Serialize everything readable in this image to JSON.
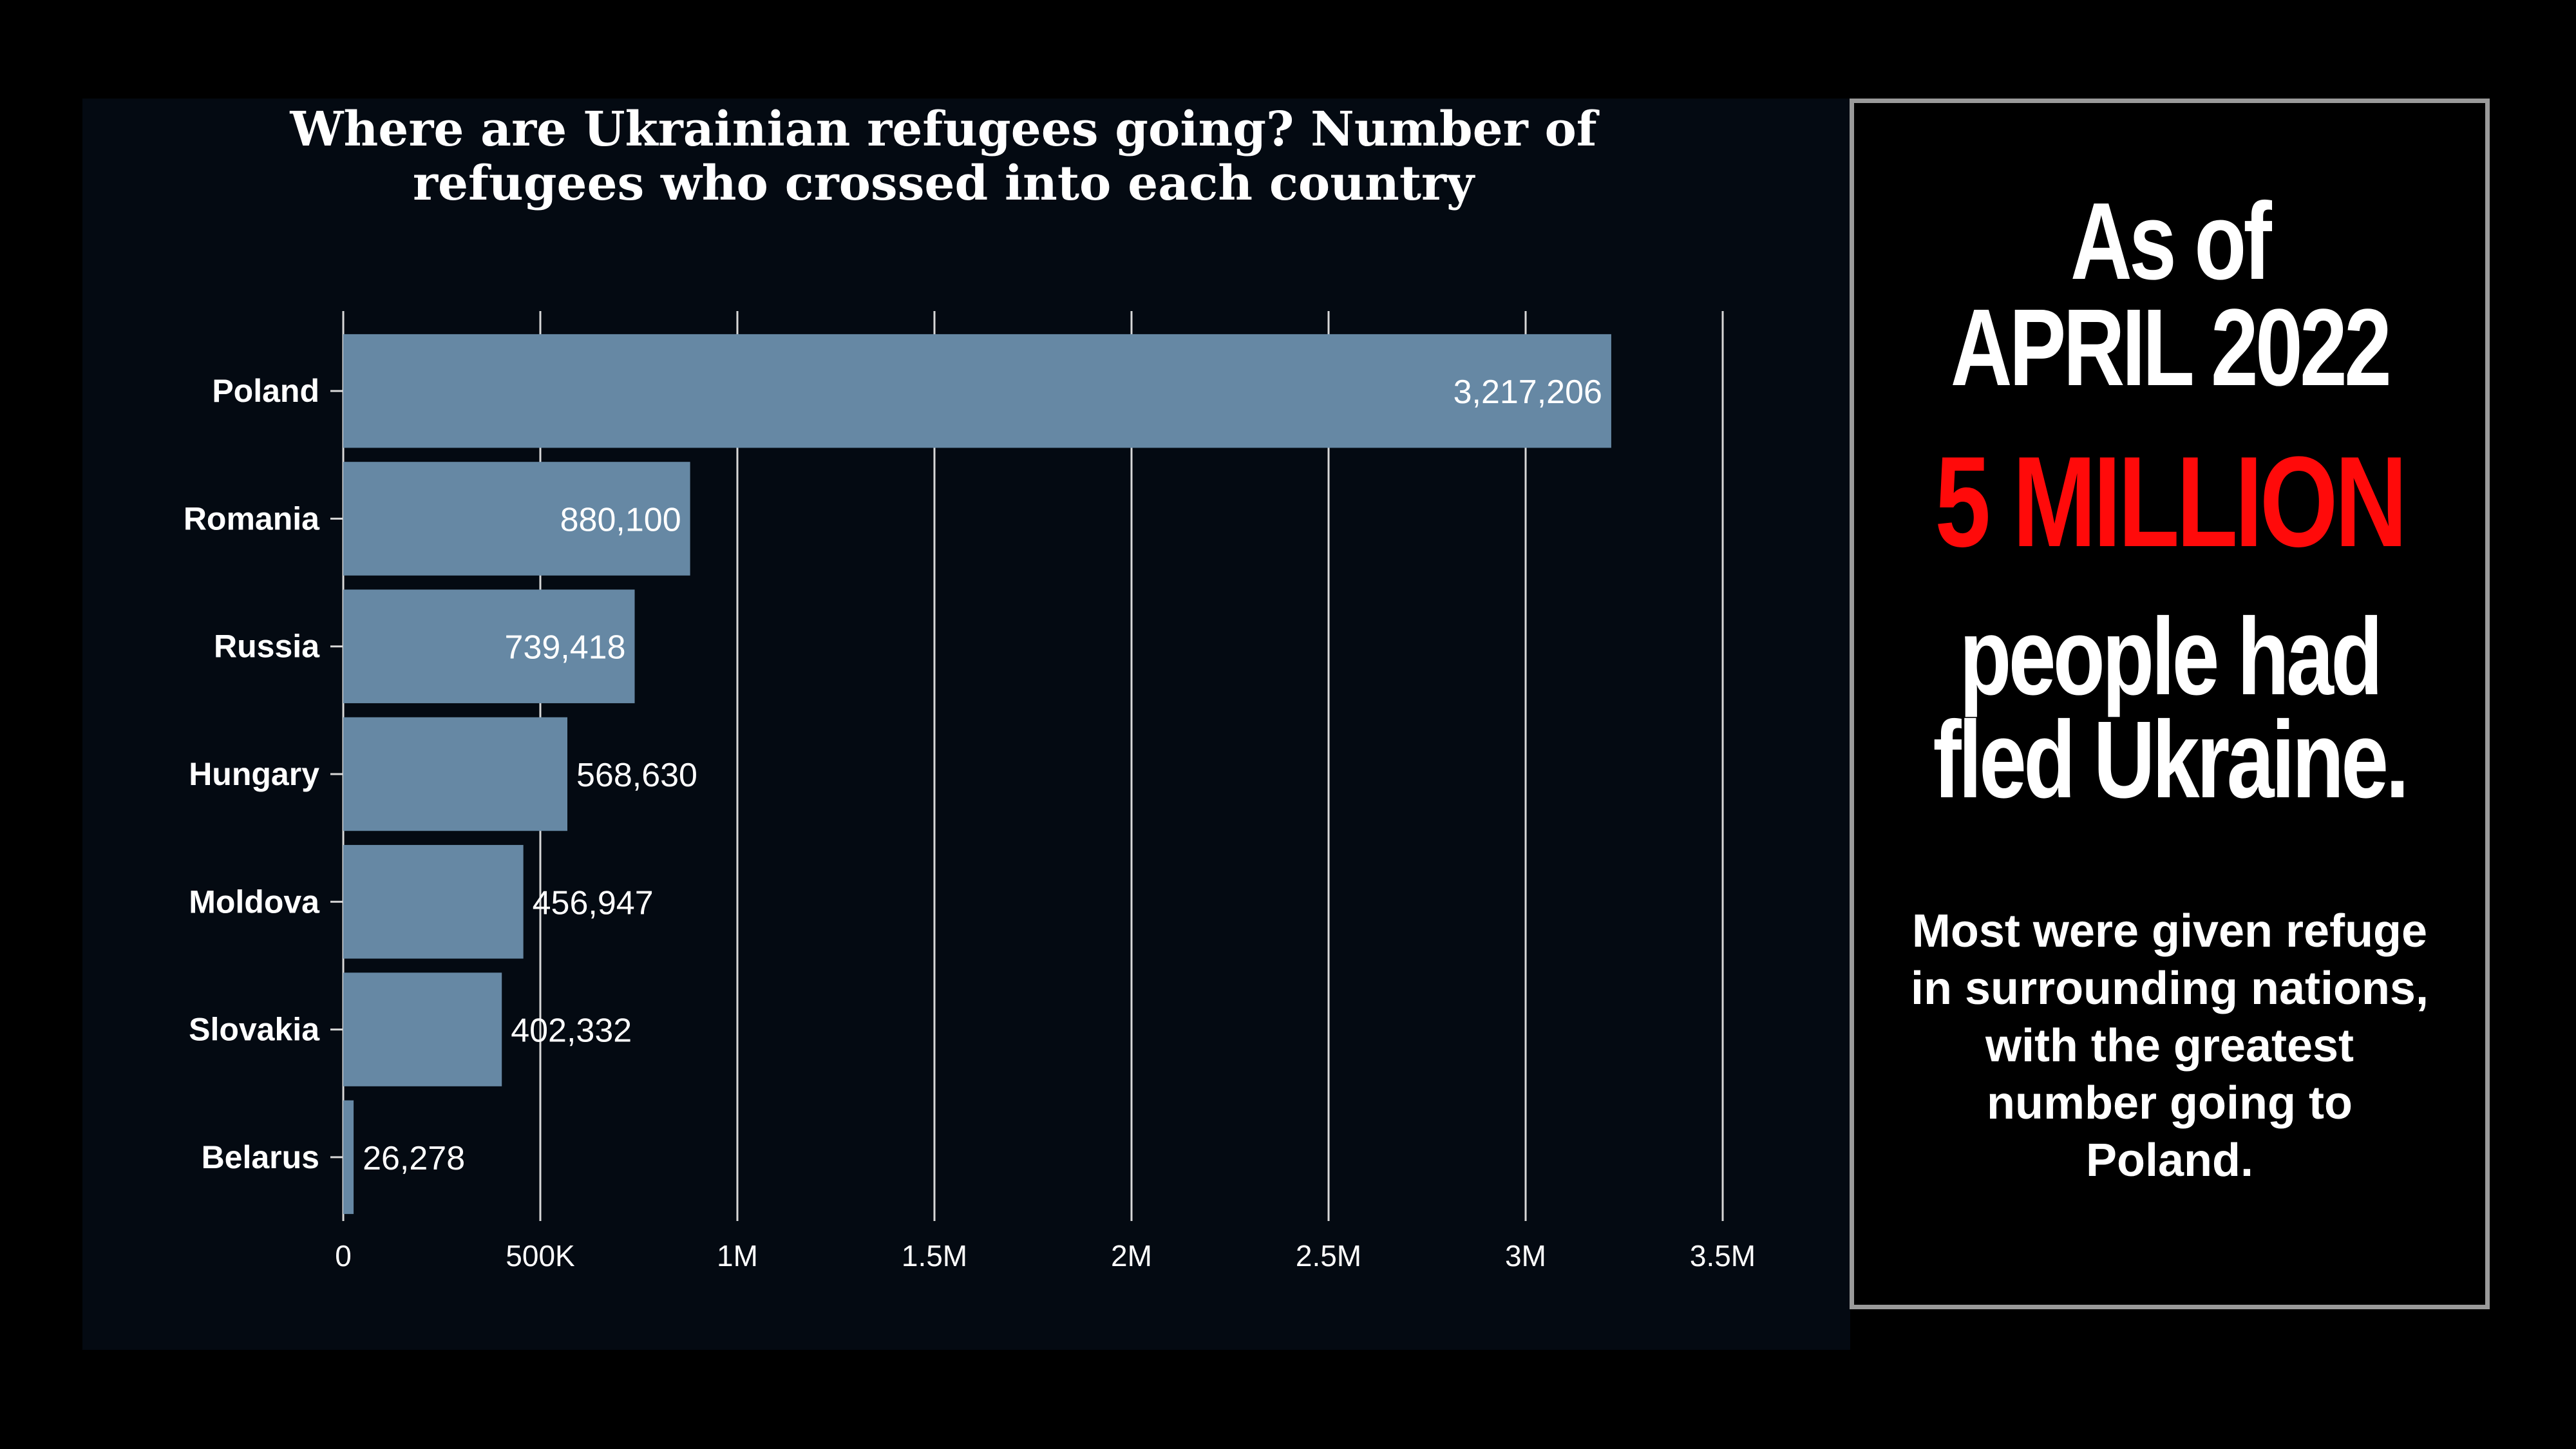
{
  "chart_data": {
    "type": "bar",
    "orientation": "horizontal",
    "title_lines": [
      "Where are Ukrainian refugees going? Number of",
      "refugees who crossed into each country"
    ],
    "categories": [
      "Poland",
      "Romania",
      "Russia",
      "Hungary",
      "Moldova",
      "Slovakia",
      "Belarus"
    ],
    "values": [
      3217206,
      880100,
      739418,
      568630,
      456947,
      402332,
      26278
    ],
    "value_labels": [
      "3,217,206",
      "880,100",
      "739,418",
      "568,630",
      "456,947",
      "402,332",
      "26,278"
    ],
    "xlim": [
      0,
      3500000
    ],
    "ticks": [
      0,
      500000,
      1000000,
      1500000,
      2000000,
      2500000,
      3000000,
      3500000
    ],
    "tick_labels": [
      "0",
      "500K",
      "1M",
      "1.5M",
      "2M",
      "2.5M",
      "3M",
      "3.5M"
    ],
    "grid": true,
    "bar_color": "#6688a4",
    "grid_color": "#d8d8d8"
  },
  "info": {
    "line1": "As of",
    "line2": "APRIL 2022",
    "highlight": "5 MILLION",
    "line3": "people had",
    "line4": "fled Ukraine.",
    "note": "Most were given refuge in surrounding nations, with the greatest number going to Poland.",
    "highlight_color": "#ff0a0a"
  }
}
